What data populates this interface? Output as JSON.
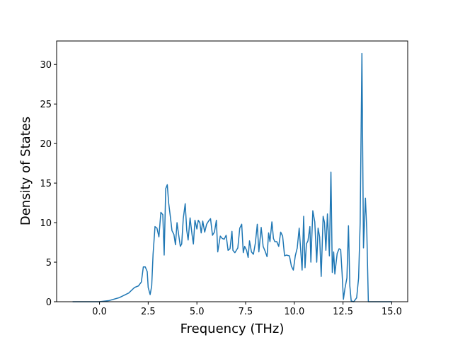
{
  "chart_data": {
    "type": "line",
    "xlabel": "Frequency (THz)",
    "ylabel": "Density of States",
    "color": "#1f77b4",
    "x": [
      -1.38,
      0,
      0.5,
      1.0,
      1.5,
      1.8,
      2.0,
      2.15,
      2.25,
      2.35,
      2.45,
      2.5,
      2.6,
      2.68,
      2.75,
      2.85,
      2.95,
      3.05,
      3.15,
      3.25,
      3.32,
      3.4,
      3.48,
      3.55,
      3.65,
      3.72,
      3.82,
      3.9,
      3.98,
      4.05,
      4.15,
      4.22,
      4.3,
      4.4,
      4.48,
      4.55,
      4.65,
      4.75,
      4.82,
      4.9,
      5.0,
      5.07,
      5.15,
      5.22,
      5.3,
      5.4,
      5.5,
      5.6,
      5.7,
      5.8,
      5.9,
      6.0,
      6.07,
      6.2,
      6.3,
      6.4,
      6.5,
      6.6,
      6.7,
      6.8,
      6.85,
      6.95,
      7.1,
      7.2,
      7.3,
      7.38,
      7.45,
      7.55,
      7.63,
      7.7,
      7.8,
      7.9,
      8.0,
      8.1,
      8.18,
      8.3,
      8.4,
      8.5,
      8.6,
      8.68,
      8.75,
      8.85,
      8.93,
      9.0,
      9.1,
      9.2,
      9.3,
      9.4,
      9.5,
      9.6,
      9.75,
      9.85,
      9.95,
      10.05,
      10.15,
      10.25,
      10.32,
      10.4,
      10.48,
      10.55,
      10.62,
      10.7,
      10.8,
      10.85,
      10.95,
      11.05,
      11.15,
      11.22,
      11.3,
      11.38,
      11.48,
      11.55,
      11.62,
      11.7,
      11.8,
      11.88,
      11.95,
      12.02,
      12.08,
      12.2,
      12.3,
      12.38,
      12.45,
      12.52,
      12.6,
      12.7,
      12.78,
      12.85,
      12.92,
      13.05,
      13.2,
      13.3,
      13.38,
      13.47,
      13.55,
      13.65,
      13.72,
      13.8,
      14.0,
      15.0
    ],
    "values": [
      0,
      0,
      0.15,
      0.5,
      1.1,
      1.8,
      2.0,
      2.5,
      4.4,
      4.4,
      3.8,
      1.8,
      0.9,
      2.0,
      6.0,
      9.5,
      9.3,
      8.2,
      11.3,
      11.0,
      5.9,
      14.3,
      14.8,
      12.5,
      10.5,
      9.0,
      8.5,
      7.2,
      10.0,
      8.7,
      7.0,
      7.3,
      10.5,
      12.4,
      9.0,
      7.8,
      10.6,
      8.5,
      7.3,
      10.3,
      9.2,
      10.3,
      10.0,
      8.7,
      10.2,
      8.8,
      9.8,
      10.2,
      10.5,
      8.4,
      8.8,
      10.3,
      6.3,
      8.3,
      8.0,
      7.9,
      8.4,
      6.5,
      6.7,
      8.9,
      6.5,
      6.2,
      6.8,
      9.3,
      9.8,
      6.2,
      7.0,
      6.5,
      5.6,
      7.7,
      6.3,
      6.0,
      7.4,
      9.8,
      6.3,
      9.4,
      7.0,
      6.4,
      5.7,
      8.7,
      7.6,
      10.1,
      8.0,
      7.6,
      7.6,
      7.0,
      8.8,
      8.3,
      5.8,
      5.9,
      5.8,
      4.5,
      4.0,
      5.8,
      6.8,
      9.3,
      6.8,
      4.0,
      10.8,
      4.3,
      7.3,
      7.7,
      9.5,
      5.0,
      11.5,
      10.1,
      5.0,
      9.3,
      8.2,
      3.2,
      10.8,
      10.0,
      6.5,
      11.1,
      5.8,
      16.4,
      3.7,
      6.3,
      3.5,
      6.1,
      6.7,
      6.6,
      3.7,
      0.3,
      1.7,
      3.0,
      9.6,
      2.0,
      0.1,
      0,
      0.5,
      3.0,
      10.0,
      31.4,
      6.8,
      13.1,
      9.0,
      0,
      0,
      0
    ],
    "xlim": [
      -2.2,
      15.82
    ],
    "ylim": [
      0,
      32.97
    ],
    "xticks": [
      {
        "value": 0,
        "label": "0.0"
      },
      2.5,
      {
        "value": 5,
        "label": "5.0"
      },
      7.5,
      {
        "value": 10,
        "label": "10.0"
      },
      12.5,
      {
        "value": 15,
        "label": "15.0"
      }
    ],
    "yticks": [
      0,
      5,
      10,
      15,
      20,
      25,
      30
    ]
  }
}
